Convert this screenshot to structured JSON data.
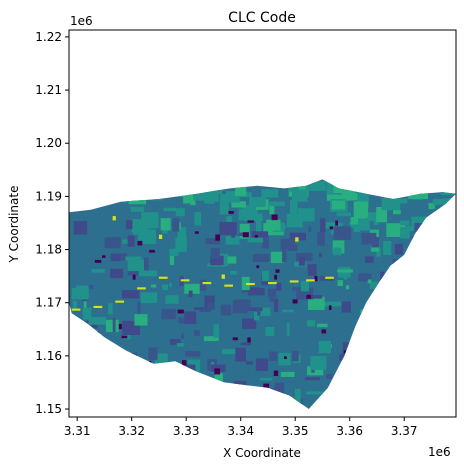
{
  "chart_data": {
    "type": "heatmap",
    "title": "CLC Code",
    "xlabel": "X Coordinate",
    "ylabel": "Y Coordinate",
    "x_offset_label": "1e6",
    "y_offset_label": "1e6",
    "xlim": [
      3.3085,
      3.3795
    ],
    "ylim": [
      1.1485,
      1.2213
    ],
    "x_ticks": [
      3.31,
      3.32,
      3.33,
      3.34,
      3.35,
      3.36,
      3.37
    ],
    "x_tick_labels": [
      "3.31",
      "3.32",
      "3.33",
      "3.34",
      "3.35",
      "3.36",
      "3.37"
    ],
    "y_ticks": [
      1.15,
      1.16,
      1.17,
      1.18,
      1.19,
      1.2,
      1.21,
      1.22
    ],
    "y_tick_labels": [
      "1.15",
      "1.16",
      "1.17",
      "1.18",
      "1.19",
      "1.20",
      "1.21",
      "1.22"
    ],
    "grid": false,
    "colormap": "viridis",
    "colors": {
      "base": "#2d6f8e",
      "dark_blue": "#39558c",
      "teal": "#21918c",
      "green_teal": "#29af7f",
      "purple": "#440154",
      "yellow": "#d8e219",
      "navy": "#3e4a89"
    },
    "extent_outline_data_units": [
      [
        3.3085,
        1.187
      ],
      [
        3.3125,
        1.1875
      ],
      [
        3.318,
        1.189
      ],
      [
        3.325,
        1.1895
      ],
      [
        3.332,
        1.1905
      ],
      [
        3.338,
        1.1915
      ],
      [
        3.343,
        1.192
      ],
      [
        3.348,
        1.1915
      ],
      [
        3.352,
        1.192
      ],
      [
        3.355,
        1.1932
      ],
      [
        3.358,
        1.1915
      ],
      [
        3.363,
        1.1905
      ],
      [
        3.368,
        1.1895
      ],
      [
        3.373,
        1.1905
      ],
      [
        3.377,
        1.1908
      ],
      [
        3.3795,
        1.1905
      ],
      [
        3.3775,
        1.1885
      ],
      [
        3.374,
        1.186
      ],
      [
        3.372,
        1.183
      ],
      [
        3.37,
        1.179
      ],
      [
        3.3675,
        1.177
      ],
      [
        3.3655,
        1.174
      ],
      [
        3.363,
        1.17
      ],
      [
        3.361,
        1.1655
      ],
      [
        3.359,
        1.16
      ],
      [
        3.356,
        1.154
      ],
      [
        3.3525,
        1.15
      ],
      [
        3.349,
        1.1525
      ],
      [
        3.345,
        1.154
      ],
      [
        3.341,
        1.1545
      ],
      [
        3.337,
        1.155
      ],
      [
        3.332,
        1.157
      ],
      [
        3.328,
        1.159
      ],
      [
        3.324,
        1.1585
      ],
      [
        3.319,
        1.161
      ],
      [
        3.315,
        1.1635
      ],
      [
        3.312,
        1.166
      ],
      [
        3.309,
        1.168
      ],
      [
        3.3085,
        1.17
      ]
    ]
  }
}
